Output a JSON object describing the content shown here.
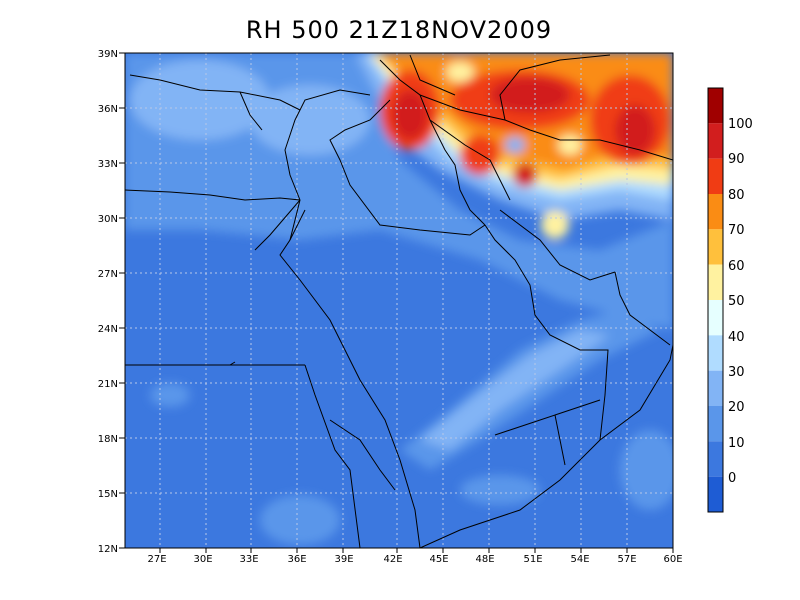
{
  "title": "RH 500 21Z18NOV2009",
  "lat_ticks": [
    "39N",
    "36N",
    "33N",
    "30N",
    "27N",
    "24N",
    "21N",
    "18N",
    "15N",
    "12N"
  ],
  "lon_ticks": [
    "27E",
    "30E",
    "33E",
    "36E",
    "39E",
    "42E",
    "45E",
    "48E",
    "51E",
    "54E",
    "57E",
    "60E"
  ],
  "colorbar": {
    "labels": [
      "100",
      "90",
      "80",
      "70",
      "60",
      "50",
      "40",
      "30",
      "20",
      "10",
      "0"
    ],
    "colors": [
      "#a00000",
      "#d21e1e",
      "#f03c14",
      "#fa8c14",
      "#ffc03c",
      "#fff2a0",
      "#e6ffff",
      "#b0dcff",
      "#82b4f5",
      "#5a96ea",
      "#3c78df",
      "#1e5cd4"
    ]
  }
}
